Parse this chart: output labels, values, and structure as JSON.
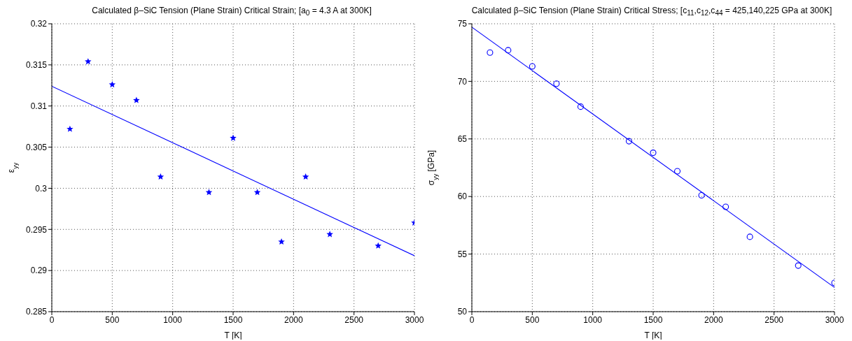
{
  "chart_data": [
    {
      "type": "scatter",
      "title": "Calculated β–SiC Tension (Plane Strain) Critical Strain; [a$_{0}$ = 4.3 A at 300K]",
      "xlabel": "T [K]",
      "ylabel": "ε$_{yy}$",
      "xlim": [
        0,
        3000
      ],
      "xticks": [
        0,
        500,
        1000,
        1500,
        2000,
        2500,
        3000
      ],
      "ylim": [
        0.285,
        0.32
      ],
      "yticks": [
        0.285,
        0.29,
        0.295,
        0.3,
        0.305,
        0.31,
        0.315,
        0.32
      ],
      "grid": true,
      "legend": false,
      "series": [
        {
          "marker": "star",
          "color": "#0000ff",
          "x": [
            150,
            300,
            500,
            700,
            900,
            1300,
            1500,
            1700,
            1900,
            2100,
            2300,
            2700,
            3000
          ],
          "values": [
            0.3072,
            0.3154,
            0.3126,
            0.3107,
            0.3014,
            0.2995,
            0.3061,
            0.2995,
            0.2935,
            0.3014,
            0.2944,
            0.293,
            0.2958
          ]
        },
        {
          "type": "line",
          "line_style": "solid",
          "color": "#0000ff",
          "x": [
            0,
            3000
          ],
          "values": [
            0.3124,
            0.2918
          ]
        }
      ]
    },
    {
      "type": "scatter",
      "title": "Calculated β–SiC Tension (Plane Strain) Critical Stress; [c$_{11}$,c$_{12}$,c$_{44}$ = 425,140,225 GPa at 300K]",
      "xlabel": "T [K]",
      "ylabel": "σ$_{yy}$ [GPa]",
      "xlim": [
        0,
        3000
      ],
      "xticks": [
        0,
        500,
        1000,
        1500,
        2000,
        2500,
        3000
      ],
      "ylim": [
        50,
        75
      ],
      "yticks": [
        50,
        55,
        60,
        65,
        70,
        75
      ],
      "grid": true,
      "legend": false,
      "series": [
        {
          "marker": "circle",
          "color": "#0000ff",
          "x": [
            150,
            300,
            500,
            700,
            900,
            1300,
            1500,
            1700,
            1900,
            2100,
            2300,
            2700,
            3000
          ],
          "values": [
            72.5,
            72.7,
            71.3,
            69.8,
            67.8,
            64.8,
            63.8,
            62.2,
            60.1,
            59.1,
            56.5,
            54.0,
            52.5
          ]
        },
        {
          "type": "line",
          "line_style": "solid",
          "color": "#0000ff",
          "x": [
            0,
            3000
          ],
          "values": [
            74.7,
            52.1
          ]
        }
      ]
    }
  ]
}
